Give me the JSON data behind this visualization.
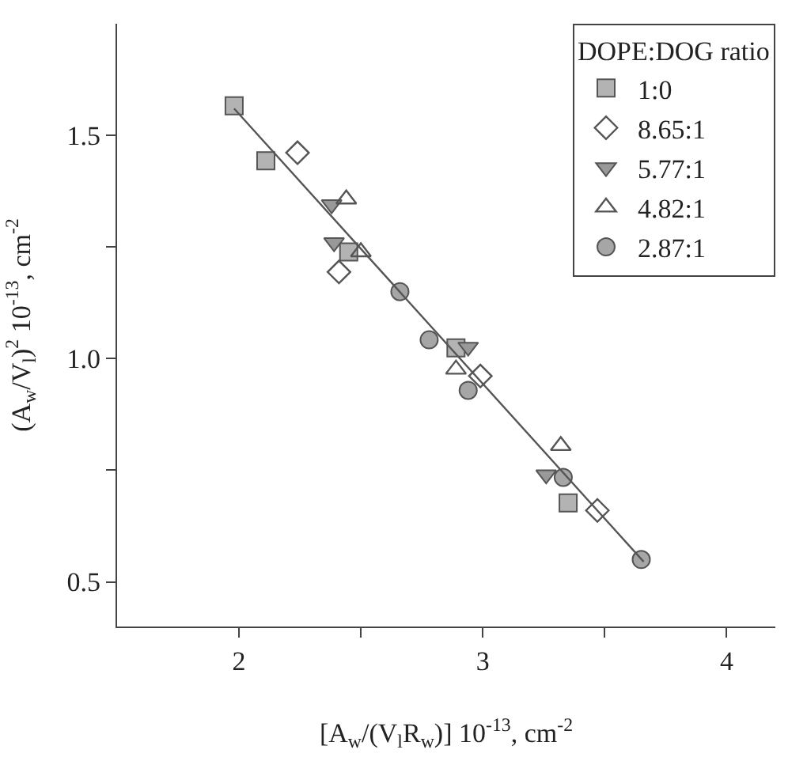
{
  "chart_data": {
    "type": "scatter",
    "xlabel": "[A$_{w}$/(V$_{l}$R$_{w}$)] 10$^{-13}$, cm$^{-2}$",
    "ylabel": "(A$_{w}$/V$_{l}$)$^{2}$ 10$^{-13}$, cm$^{-2}$",
    "legend_title": "DOPE:DOG ratio",
    "legend": "top right",
    "xlim": [
      1.5,
      4.2
    ],
    "ylim": [
      0.4,
      1.75
    ],
    "xticks": [
      2,
      {
        "value": 2.5,
        "label": null
      },
      3,
      {
        "value": 3.5,
        "label": null
      },
      4
    ],
    "yticks": [
      {
        "value": 0.5,
        "label": "0.5"
      },
      {
        "value": 0.75,
        "label": null
      },
      {
        "value": 1.0,
        "label": "1.0"
      },
      {
        "value": 1.25,
        "label": null
      },
      {
        "value": 1.5,
        "label": "1.5"
      }
    ],
    "series": [
      {
        "name": "1:0",
        "marker": "square",
        "color": "#b3b3b3",
        "x": [
          1.98,
          2.11,
          2.45,
          2.89,
          3.35
        ],
        "values": [
          1.566,
          1.443,
          1.239,
          1.024,
          0.677
        ]
      },
      {
        "name": "8.65:1",
        "marker": "diamond-open",
        "color": "#555555",
        "x": [
          2.24,
          2.41,
          2.99,
          3.47
        ],
        "values": [
          1.461,
          1.194,
          0.961,
          0.66
        ]
      },
      {
        "name": "5.77:1",
        "marker": "triangle-down",
        "color": "#999999",
        "x": [
          2.38,
          2.39,
          2.94,
          3.26
        ],
        "values": [
          1.345,
          1.26,
          1.026,
          0.74
        ]
      },
      {
        "name": "4.82:1",
        "marker": "triangle-up-open",
        "color": "#555555",
        "x": [
          2.44,
          2.5,
          2.89,
          3.32
        ],
        "values": [
          1.357,
          1.239,
          0.976,
          0.805
        ]
      },
      {
        "name": "2.87:1",
        "marker": "circle",
        "color": "#a6a6a6",
        "x": [
          2.66,
          2.78,
          2.94,
          3.33,
          3.65
        ],
        "values": [
          1.15,
          1.042,
          0.929,
          0.734,
          0.55
        ]
      },
      {
        "type": "line",
        "color": "#555555",
        "x": [
          1.98,
          3.66
        ],
        "values": [
          1.56,
          0.545
        ]
      }
    ]
  }
}
